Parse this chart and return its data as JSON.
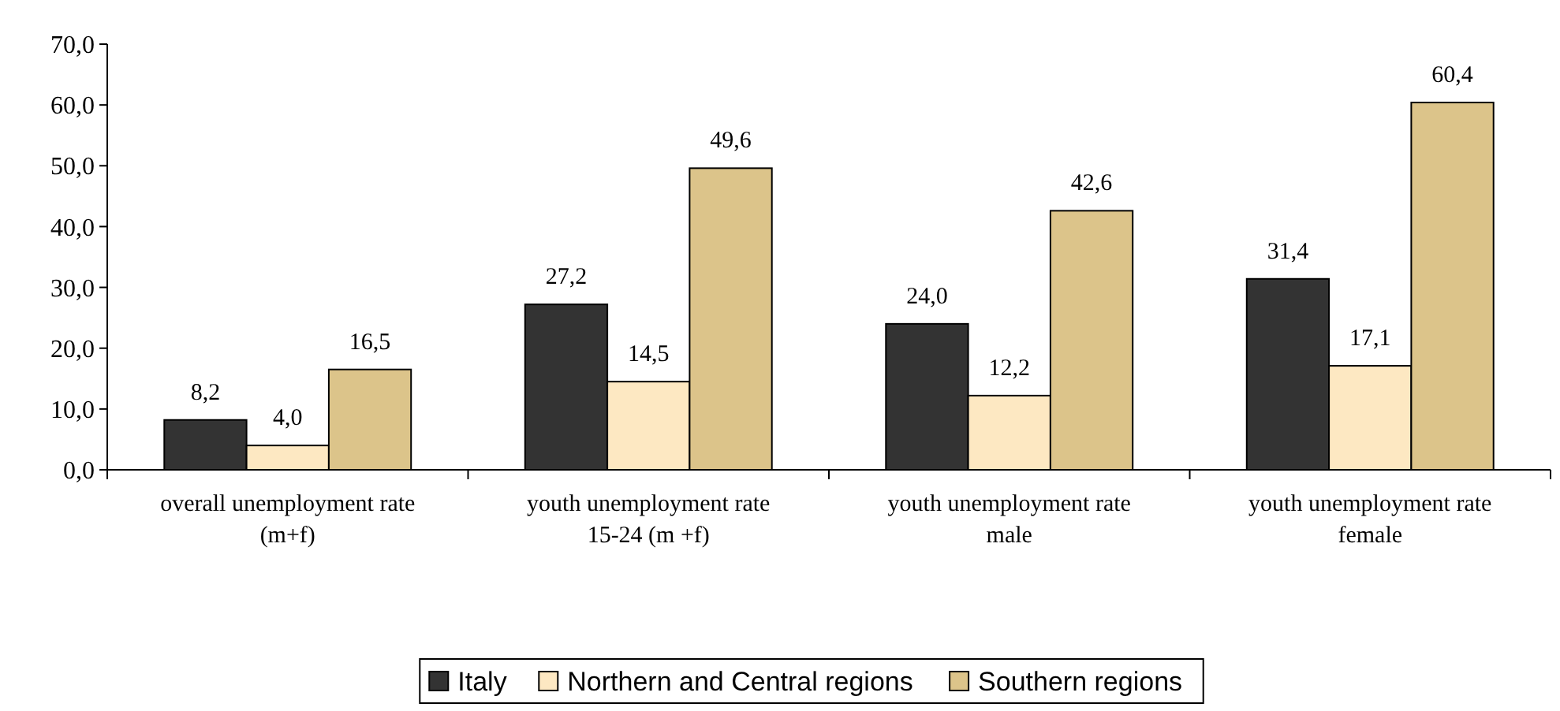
{
  "chart_data": {
    "type": "bar",
    "categories": [
      "overall unemployment rate\n(m+f)",
      "youth unemployment rate\n15-24 (m +f)",
      "youth unemployment rate\nmale",
      "youth unemployment rate\nfemale"
    ],
    "series": [
      {
        "name": "Italy",
        "color": "#333333",
        "values": [
          8.2,
          27.2,
          24.0,
          31.4
        ],
        "value_labels": [
          "8,2",
          "27,2",
          "24,0",
          "31,4"
        ]
      },
      {
        "name": "Northern and Central regions",
        "color": "#fde8c2",
        "values": [
          4.0,
          14.5,
          12.2,
          17.1
        ],
        "value_labels": [
          "4,0",
          "14,5",
          "12,2",
          "17,1"
        ]
      },
      {
        "name": "Southern regions",
        "color": "#dcc48a",
        "values": [
          16.5,
          49.6,
          42.6,
          60.4
        ],
        "value_labels": [
          "16,5",
          "49,6",
          "42,6",
          "60,4"
        ]
      }
    ],
    "ylim": [
      0,
      70
    ],
    "yticks": [
      {
        "value": 0,
        "label": "0,0"
      },
      {
        "value": 10,
        "label": "10,0"
      },
      {
        "value": 20,
        "label": "20,0"
      },
      {
        "value": 30,
        "label": "30,0"
      },
      {
        "value": 40,
        "label": "40,0"
      },
      {
        "value": 50,
        "label": "50,0"
      },
      {
        "value": 60,
        "label": "60,0"
      },
      {
        "value": 70,
        "label": "70,0"
      }
    ],
    "grid": false,
    "legend": "bottom"
  }
}
